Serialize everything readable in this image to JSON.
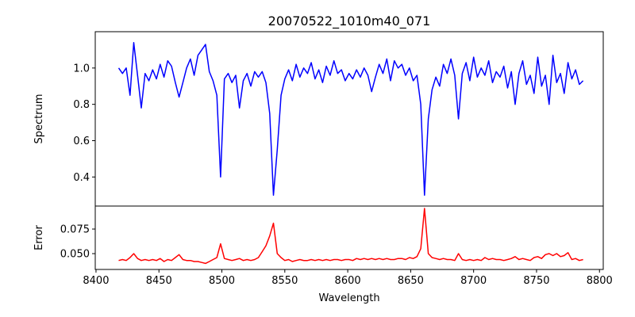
{
  "chart_data": [
    {
      "type": "line",
      "title": "20070522_1010m40_071",
      "xlabel": "",
      "ylabel": "Spectrum",
      "color": "#0000ff",
      "xlim": [
        8399.4,
        8803
      ],
      "ylim": [
        0.24,
        1.2
      ],
      "yticks": [
        0.4,
        0.6,
        0.8,
        1.0
      ],
      "ytick_labels": [
        "0.4",
        "0.6",
        "0.8",
        "1.0"
      ],
      "x_start": 8418,
      "x_step": 3,
      "values": [
        1.0,
        0.97,
        1.0,
        0.85,
        1.14,
        0.96,
        0.78,
        0.97,
        0.93,
        0.99,
        0.94,
        1.02,
        0.95,
        1.04,
        1.01,
        0.92,
        0.84,
        0.92,
        1.0,
        1.05,
        0.96,
        1.07,
        1.1,
        1.13,
        0.98,
        0.93,
        0.85,
        0.4,
        0.94,
        0.97,
        0.92,
        0.96,
        0.78,
        0.93,
        0.97,
        0.9,
        0.98,
        0.95,
        0.98,
        0.92,
        0.75,
        0.3,
        0.55,
        0.85,
        0.94,
        0.99,
        0.93,
        1.02,
        0.95,
        1.0,
        0.97,
        1.03,
        0.94,
        0.99,
        0.92,
        1.01,
        0.96,
        1.04,
        0.97,
        0.99,
        0.93,
        0.97,
        0.94,
        0.99,
        0.95,
        1.0,
        0.96,
        0.87,
        0.95,
        1.02,
        0.97,
        1.05,
        0.93,
        1.04,
        1.0,
        1.02,
        0.96,
        1.0,
        0.93,
        0.96,
        0.8,
        0.3,
        0.72,
        0.88,
        0.95,
        0.9,
        1.02,
        0.97,
        1.05,
        0.96,
        0.72,
        0.97,
        1.03,
        0.93,
        1.06,
        0.95,
        1.0,
        0.96,
        1.04,
        0.92,
        0.98,
        0.95,
        1.01,
        0.89,
        0.98,
        0.8,
        0.97,
        1.04,
        0.91,
        0.96,
        0.86,
        1.06,
        0.9,
        0.96,
        0.8,
        1.07,
        0.92,
        0.97,
        0.86,
        1.03,
        0.94,
        0.99,
        0.91,
        0.93
      ]
    },
    {
      "type": "line",
      "title": "",
      "xlabel": "Wavelength",
      "ylabel": "Error",
      "color": "#ff0000",
      "xlim": [
        8399.4,
        8803
      ],
      "ylim": [
        0.0339,
        0.0984
      ],
      "xticks": [
        8400,
        8450,
        8500,
        8550,
        8600,
        8650,
        8700,
        8750,
        8800
      ],
      "xtick_labels": [
        "8400",
        "8450",
        "8500",
        "8550",
        "8600",
        "8650",
        "8700",
        "8750",
        "8800"
      ],
      "yticks": [
        0.05,
        0.075
      ],
      "ytick_labels": [
        "0.050",
        "0.075"
      ],
      "x_start": 8418,
      "x_step": 3,
      "values": [
        0.043,
        0.044,
        0.043,
        0.046,
        0.05,
        0.045,
        0.043,
        0.044,
        0.043,
        0.044,
        0.043,
        0.045,
        0.042,
        0.044,
        0.043,
        0.046,
        0.049,
        0.044,
        0.043,
        0.043,
        0.042,
        0.042,
        0.041,
        0.04,
        0.042,
        0.044,
        0.046,
        0.06,
        0.045,
        0.044,
        0.043,
        0.044,
        0.045,
        0.043,
        0.044,
        0.043,
        0.044,
        0.046,
        0.052,
        0.058,
        0.068,
        0.081,
        0.05,
        0.046,
        0.043,
        0.044,
        0.042,
        0.043,
        0.044,
        0.043,
        0.043,
        0.044,
        0.043,
        0.044,
        0.043,
        0.044,
        0.043,
        0.044,
        0.044,
        0.043,
        0.044,
        0.044,
        0.043,
        0.045,
        0.044,
        0.045,
        0.044,
        0.045,
        0.044,
        0.045,
        0.044,
        0.045,
        0.044,
        0.044,
        0.045,
        0.045,
        0.044,
        0.046,
        0.045,
        0.047,
        0.055,
        0.096,
        0.05,
        0.046,
        0.045,
        0.044,
        0.045,
        0.044,
        0.044,
        0.043,
        0.05,
        0.044,
        0.043,
        0.044,
        0.043,
        0.044,
        0.043,
        0.046,
        0.044,
        0.045,
        0.044,
        0.044,
        0.043,
        0.044,
        0.045,
        0.047,
        0.044,
        0.045,
        0.044,
        0.043,
        0.046,
        0.047,
        0.045,
        0.049,
        0.05,
        0.048,
        0.05,
        0.047,
        0.048,
        0.051,
        0.044,
        0.045,
        0.043,
        0.044
      ]
    }
  ]
}
